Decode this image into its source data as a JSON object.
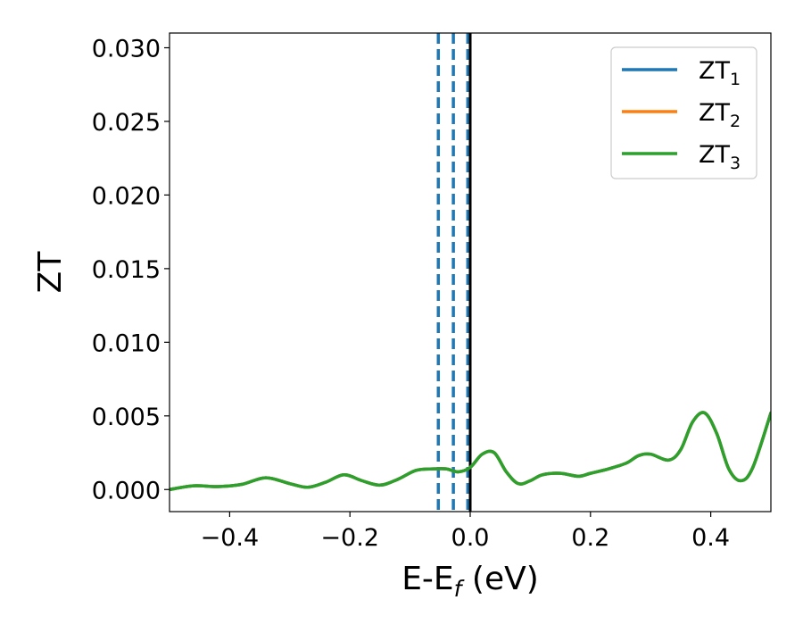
{
  "chart_data": {
    "type": "line",
    "xlabel": "E-E",
    "xlabel_sub": "f",
    "xlabel_unit": " (eV)",
    "ylabel": "ZT",
    "xlim": [
      -0.5,
      0.5
    ],
    "ylim": [
      -0.0015,
      0.031
    ],
    "xticks": [
      -0.4,
      -0.2,
      0.0,
      0.2,
      0.4
    ],
    "xtick_labels": [
      "−0.4",
      "−0.2",
      "0.0",
      "0.2",
      "0.4"
    ],
    "yticks": [
      0.0,
      0.005,
      0.01,
      0.015,
      0.02,
      0.025,
      0.03
    ],
    "ytick_labels": [
      "0.000",
      "0.005",
      "0.010",
      "0.015",
      "0.020",
      "0.025",
      "0.030"
    ],
    "grid": false,
    "legend_position": "top-right",
    "series": [
      {
        "name": "ZT",
        "sub": "1",
        "color": "#1f77b4",
        "x": [
          -0.5,
          -0.46,
          -0.42,
          -0.38,
          -0.34,
          -0.3,
          -0.27,
          -0.24,
          -0.21,
          -0.18,
          -0.15,
          -0.12,
          -0.09,
          -0.06,
          -0.04,
          -0.02,
          0.0,
          0.02,
          0.04,
          0.06,
          0.08,
          0.1,
          0.12,
          0.15,
          0.18,
          0.2,
          0.23,
          0.26,
          0.28,
          0.3,
          0.33,
          0.35,
          0.37,
          0.39,
          0.41,
          0.43,
          0.45,
          0.47,
          0.5
        ],
        "y": [
          0.0,
          0.00025,
          0.0002,
          0.00035,
          0.0008,
          0.0004,
          0.00015,
          0.0005,
          0.001,
          0.0006,
          0.0003,
          0.0007,
          0.0013,
          0.0014,
          0.0014,
          0.0012,
          0.0015,
          0.0024,
          0.0025,
          0.0012,
          0.0004,
          0.0006,
          0.001,
          0.0011,
          0.0009,
          0.0011,
          0.0014,
          0.0018,
          0.0023,
          0.0024,
          0.002,
          0.0027,
          0.0046,
          0.0052,
          0.0038,
          0.0014,
          0.0006,
          0.0015,
          0.0052
        ]
      },
      {
        "name": "ZT",
        "sub": "2",
        "color": "#ff7f0e",
        "x": [
          -0.5,
          -0.46,
          -0.42,
          -0.38,
          -0.34,
          -0.3,
          -0.27,
          -0.24,
          -0.21,
          -0.18,
          -0.15,
          -0.12,
          -0.09,
          -0.06,
          -0.04,
          -0.02,
          0.0,
          0.02,
          0.04,
          0.06,
          0.08,
          0.1,
          0.12,
          0.15,
          0.18,
          0.2,
          0.23,
          0.26,
          0.28,
          0.3,
          0.33,
          0.35,
          0.37,
          0.39,
          0.41,
          0.43,
          0.45,
          0.47,
          0.5
        ],
        "y": [
          0.0,
          0.00025,
          0.0002,
          0.00035,
          0.0008,
          0.0004,
          0.00015,
          0.0005,
          0.001,
          0.0006,
          0.0003,
          0.0007,
          0.0013,
          0.0014,
          0.0014,
          0.0012,
          0.0015,
          0.0024,
          0.0025,
          0.0012,
          0.0004,
          0.0006,
          0.001,
          0.0011,
          0.0009,
          0.0011,
          0.0014,
          0.0018,
          0.0023,
          0.0024,
          0.002,
          0.0027,
          0.0046,
          0.0052,
          0.0038,
          0.0014,
          0.0006,
          0.0015,
          0.0052
        ]
      },
      {
        "name": "ZT",
        "sub": "3",
        "color": "#2ca02c",
        "x": [
          -0.5,
          -0.46,
          -0.42,
          -0.38,
          -0.34,
          -0.3,
          -0.27,
          -0.24,
          -0.21,
          -0.18,
          -0.15,
          -0.12,
          -0.09,
          -0.06,
          -0.04,
          -0.02,
          0.0,
          0.02,
          0.04,
          0.06,
          0.08,
          0.1,
          0.12,
          0.15,
          0.18,
          0.2,
          0.23,
          0.26,
          0.28,
          0.3,
          0.33,
          0.35,
          0.37,
          0.39,
          0.41,
          0.43,
          0.45,
          0.47,
          0.5
        ],
        "y": [
          0.0,
          0.00025,
          0.0002,
          0.00035,
          0.0008,
          0.0004,
          0.00015,
          0.0005,
          0.001,
          0.0006,
          0.0003,
          0.0007,
          0.0013,
          0.0014,
          0.0014,
          0.0012,
          0.0015,
          0.0024,
          0.0025,
          0.0012,
          0.0004,
          0.0006,
          0.001,
          0.0011,
          0.0009,
          0.0011,
          0.0014,
          0.0018,
          0.0023,
          0.0024,
          0.002,
          0.0027,
          0.0046,
          0.0052,
          0.0038,
          0.0014,
          0.0006,
          0.0015,
          0.0052
        ]
      }
    ],
    "vlines": [
      {
        "x": -0.053,
        "style": "dashed",
        "color": "#1f77b4"
      },
      {
        "x": -0.028,
        "style": "dashed",
        "color": "#1f77b4"
      },
      {
        "x": -0.004,
        "style": "dashed",
        "color": "#1f77b4"
      },
      {
        "x": 0.0,
        "style": "solid",
        "color": "#000000"
      }
    ]
  }
}
